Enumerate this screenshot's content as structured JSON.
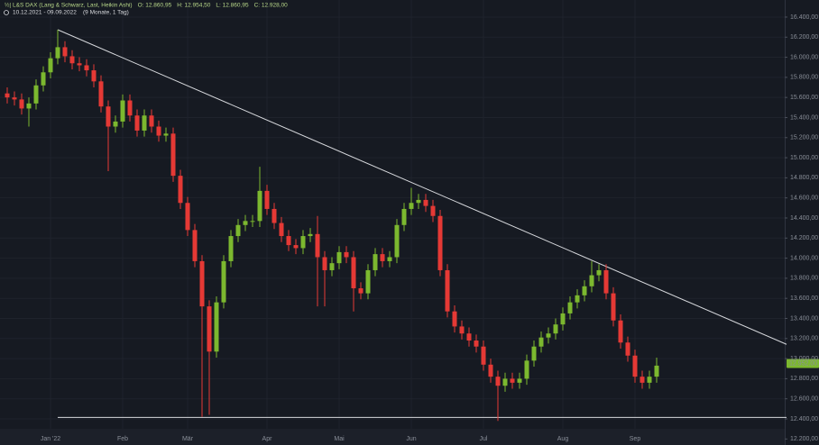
{
  "chart_data": {
    "type": "candlestick",
    "title": "L&S DAX (Lang & Schwarz, Last, Heikin Ashi)",
    "legend": [
      "O: 12.860,95",
      "H: 12.954,50",
      "L: 12.860,95",
      "C: 12.928,00"
    ],
    "subtitle": "10.12.2021 - 09.09.2022",
    "period": "(9 Monate, 1 Tag)",
    "categories": [
      null,
      null,
      null,
      null,
      null,
      null,
      "Jan '22",
      null,
      null,
      null,
      null,
      null,
      null,
      null,
      null,
      null,
      "Feb",
      null,
      null,
      null,
      null,
      null,
      null,
      null,
      null,
      "Mär",
      null,
      null,
      null,
      null,
      null,
      null,
      null,
      null,
      null,
      null,
      "Apr",
      null,
      null,
      null,
      null,
      null,
      null,
      null,
      null,
      null,
      "Mai",
      null,
      null,
      null,
      null,
      null,
      null,
      null,
      null,
      null,
      "Jun",
      null,
      null,
      null,
      null,
      null,
      null,
      null,
      null,
      null,
      "Jul",
      null,
      null,
      null,
      null,
      null,
      null,
      null,
      null,
      null,
      null,
      "Aug",
      null,
      null,
      null,
      null,
      null,
      null,
      null,
      null,
      null,
      "Sep",
      null,
      null,
      null
    ],
    "open": [
      15640,
      15600,
      15580,
      15490,
      15540,
      15720,
      15850,
      15990,
      16100,
      16010,
      15940,
      15920,
      15870,
      15760,
      15510,
      15310,
      15360,
      15570,
      15420,
      15270,
      15420,
      15310,
      15220,
      15240,
      14820,
      14550,
      14280,
      13970,
      13520,
      13070,
      13560,
      13970,
      14220,
      14330,
      14370,
      14370,
      14670,
      14490,
      14350,
      14220,
      14130,
      14100,
      14220,
      14240,
      14010,
      13880,
      13950,
      14060,
      14010,
      13700,
      13650,
      13880,
      14040,
      13970,
      14010,
      14330,
      14490,
      14550,
      14580,
      14520,
      14420,
      13880,
      13470,
      13320,
      13250,
      13180,
      13120,
      12940,
      12820,
      12730,
      12800,
      12760,
      12800,
      12980,
      13120,
      13210,
      13250,
      13340,
      13450,
      13560,
      13630,
      13720,
      13830,
      13880,
      13650,
      13380,
      13160,
      13030,
      12820,
      12760,
      12820
    ],
    "high": [
      15700,
      15660,
      15640,
      15600,
      15780,
      15910,
      16050,
      16274,
      16160,
      16070,
      16000,
      15980,
      15930,
      15820,
      15570,
      15420,
      15630,
      15630,
      15480,
      15480,
      15480,
      15370,
      15300,
      15300,
      14880,
      14610,
      14340,
      14030,
      13580,
      13620,
      14030,
      14280,
      14390,
      14430,
      14430,
      14910,
      14730,
      14550,
      14410,
      14280,
      14190,
      14280,
      14300,
      14420,
      14070,
      14010,
      14120,
      14120,
      14070,
      13760,
      13940,
      14100,
      14100,
      14070,
      14390,
      14550,
      14700,
      14640,
      14640,
      14580,
      14480,
      13940,
      13530,
      13380,
      13310,
      13240,
      13180,
      13000,
      12880,
      12860,
      12860,
      12860,
      13040,
      13180,
      13270,
      13310,
      13400,
      13510,
      13620,
      13690,
      13780,
      13970,
      13940,
      13940,
      13710,
      13440,
      13220,
      13090,
      12880,
      12880,
      13010
    ],
    "low": [
      15540,
      15520,
      15430,
      15310,
      15480,
      15660,
      15790,
      15930,
      15950,
      15880,
      15860,
      15810,
      15700,
      15450,
      14866,
      15250,
      15300,
      15360,
      15210,
      15210,
      15250,
      15160,
      15160,
      14760,
      14490,
      14220,
      13910,
      12420,
      12440,
      13010,
      13500,
      13910,
      14160,
      14270,
      14310,
      14310,
      14430,
      14290,
      14160,
      14070,
      14040,
      14040,
      14160,
      13520,
      13520,
      13820,
      13890,
      13950,
      13470,
      13590,
      13590,
      13820,
      13910,
      13910,
      13950,
      14270,
      14430,
      14490,
      14460,
      14360,
      13820,
      13410,
      13260,
      13190,
      13120,
      13060,
      12880,
      12760,
      12380,
      12670,
      12700,
      12700,
      12740,
      12920,
      13060,
      13150,
      13190,
      13280,
      13390,
      13500,
      13570,
      13660,
      13770,
      13590,
      13320,
      13100,
      12970,
      12760,
      12700,
      12700,
      12760
    ],
    "close": [
      15600,
      15580,
      15490,
      15540,
      15720,
      15850,
      15990,
      16100,
      16010,
      15940,
      15920,
      15870,
      15760,
      15510,
      15310,
      15360,
      15570,
      15420,
      15270,
      15420,
      15310,
      15220,
      15240,
      14820,
      14550,
      14280,
      13970,
      13520,
      13070,
      13560,
      13970,
      14220,
      14330,
      14370,
      14370,
      14670,
      14490,
      14350,
      14220,
      14130,
      14100,
      14220,
      14240,
      14010,
      13880,
      13950,
      14060,
      14010,
      13700,
      13650,
      13880,
      14040,
      13970,
      14010,
      14330,
      14490,
      14550,
      14580,
      14520,
      14420,
      13880,
      13470,
      13320,
      13250,
      13180,
      13120,
      12940,
      12820,
      12730,
      12800,
      12760,
      12800,
      12980,
      13120,
      13210,
      13250,
      13340,
      13450,
      13560,
      13630,
      13720,
      13830,
      13880,
      13650,
      13380,
      13160,
      13030,
      12820,
      12760,
      12820,
      12930
    ],
    "up_color": "#7cb82f",
    "down_color": "#e53935",
    "ylim": [
      12140,
      16570
    ],
    "yticks": [
      {
        "value": 12200,
        "label": "12.200,00"
      },
      {
        "value": 12400,
        "label": "12.400,00"
      },
      {
        "value": 12600,
        "label": "12.600,00"
      },
      {
        "value": 12800,
        "label": "12.800,00"
      },
      {
        "value": 13000,
        "label": "13.000,00"
      },
      {
        "value": 13200,
        "label": "13.200,00"
      },
      {
        "value": 13400,
        "label": "13.400,00"
      },
      {
        "value": 13600,
        "label": "13.600,00"
      },
      {
        "value": 13800,
        "label": "13.800,00"
      },
      {
        "value": 14000,
        "label": "14.000,00"
      },
      {
        "value": 14200,
        "label": "14.200,00"
      },
      {
        "value": 14400,
        "label": "14.400,00"
      },
      {
        "value": 14600,
        "label": "14.600,00"
      },
      {
        "value": 14800,
        "label": "14.800,00"
      },
      {
        "value": 15000,
        "label": "15.000,00"
      },
      {
        "value": 15200,
        "label": "15.200,00"
      },
      {
        "value": 15400,
        "label": "15.400,00"
      },
      {
        "value": 15600,
        "label": "15.600,00"
      },
      {
        "value": 15800,
        "label": "15.800,00"
      },
      {
        "value": 16000,
        "label": "16.000,00"
      },
      {
        "value": 16200,
        "label": "16.200,00"
      },
      {
        "value": 16400,
        "label": "16.400,00"
      }
    ],
    "grid": true,
    "last_price": {
      "value": 12952,
      "label": "12.952,00"
    },
    "trendlines": [
      {
        "from": 16274,
        "to": 13142
      },
      {
        "from": 12415,
        "to": 12415
      }
    ]
  }
}
